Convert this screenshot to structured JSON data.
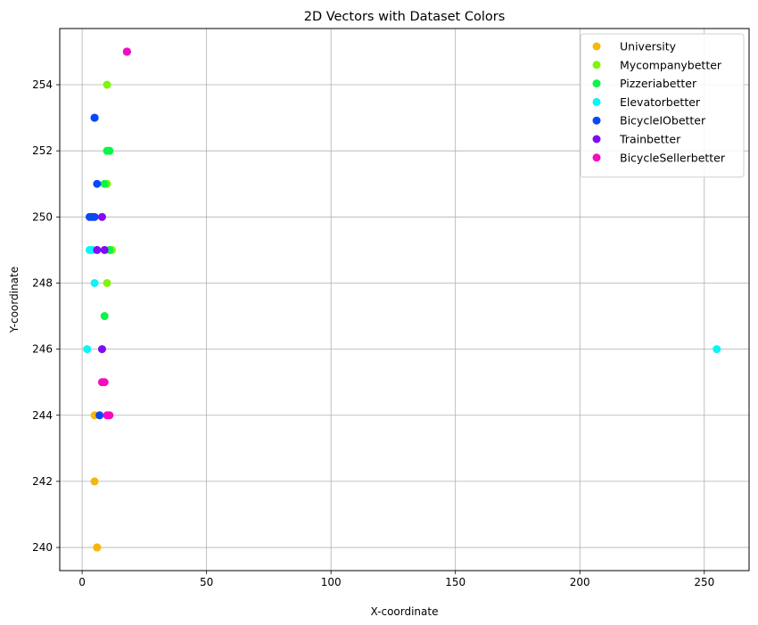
{
  "chart_data": {
    "type": "scatter",
    "title": "2D Vectors with Dataset Colors",
    "xlabel": "X-coordinate",
    "ylabel": "Y-coordinate",
    "xlim": [
      -9,
      268
    ],
    "ylim": [
      239.3,
      255.7
    ],
    "xticks": [
      0,
      50,
      100,
      150,
      200,
      250
    ],
    "yticks": [
      240,
      242,
      244,
      246,
      248,
      250,
      252,
      254
    ],
    "grid": true,
    "legend_position": "top-right",
    "series": [
      {
        "name": "University",
        "color": "#f5b70b",
        "points": [
          [
            6,
            240
          ],
          [
            6,
            240
          ],
          [
            5,
            242
          ],
          [
            5,
            244
          ],
          [
            18,
            255
          ]
        ]
      },
      {
        "name": "Mycompanybetter",
        "color": "#80f50b",
        "points": [
          [
            10,
            254
          ],
          [
            11,
            252
          ],
          [
            10,
            251
          ],
          [
            12,
            249
          ],
          [
            10,
            248
          ],
          [
            18,
            255
          ]
        ]
      },
      {
        "name": "Pizzeriabetter",
        "color": "#0bf548",
        "points": [
          [
            10,
            252
          ],
          [
            11,
            252
          ],
          [
            9,
            251
          ],
          [
            11,
            249
          ],
          [
            9,
            247
          ],
          [
            18,
            255
          ]
        ]
      },
      {
        "name": "Elevatorbetter",
        "color": "#0bf5f5",
        "points": [
          [
            3,
            249
          ],
          [
            4,
            249
          ],
          [
            5,
            248
          ],
          [
            2,
            246
          ],
          [
            255,
            246
          ],
          [
            18,
            255
          ]
        ]
      },
      {
        "name": "BicycleIObetter",
        "color": "#0b48f5",
        "points": [
          [
            5,
            253
          ],
          [
            5,
            253
          ],
          [
            6,
            251
          ],
          [
            3,
            250
          ],
          [
            4,
            250
          ],
          [
            5,
            250
          ],
          [
            7,
            244
          ],
          [
            18,
            255
          ]
        ]
      },
      {
        "name": "Trainbetter",
        "color": "#800bf5",
        "points": [
          [
            8,
            250
          ],
          [
            6,
            249
          ],
          [
            9,
            249
          ],
          [
            8,
            246
          ],
          [
            18,
            255
          ]
        ]
      },
      {
        "name": "BicycleSellerbetter",
        "color": "#f50bc2",
        "points": [
          [
            8,
            245
          ],
          [
            9,
            245
          ],
          [
            10,
            244
          ],
          [
            11,
            244
          ],
          [
            18,
            255
          ]
        ]
      }
    ]
  }
}
